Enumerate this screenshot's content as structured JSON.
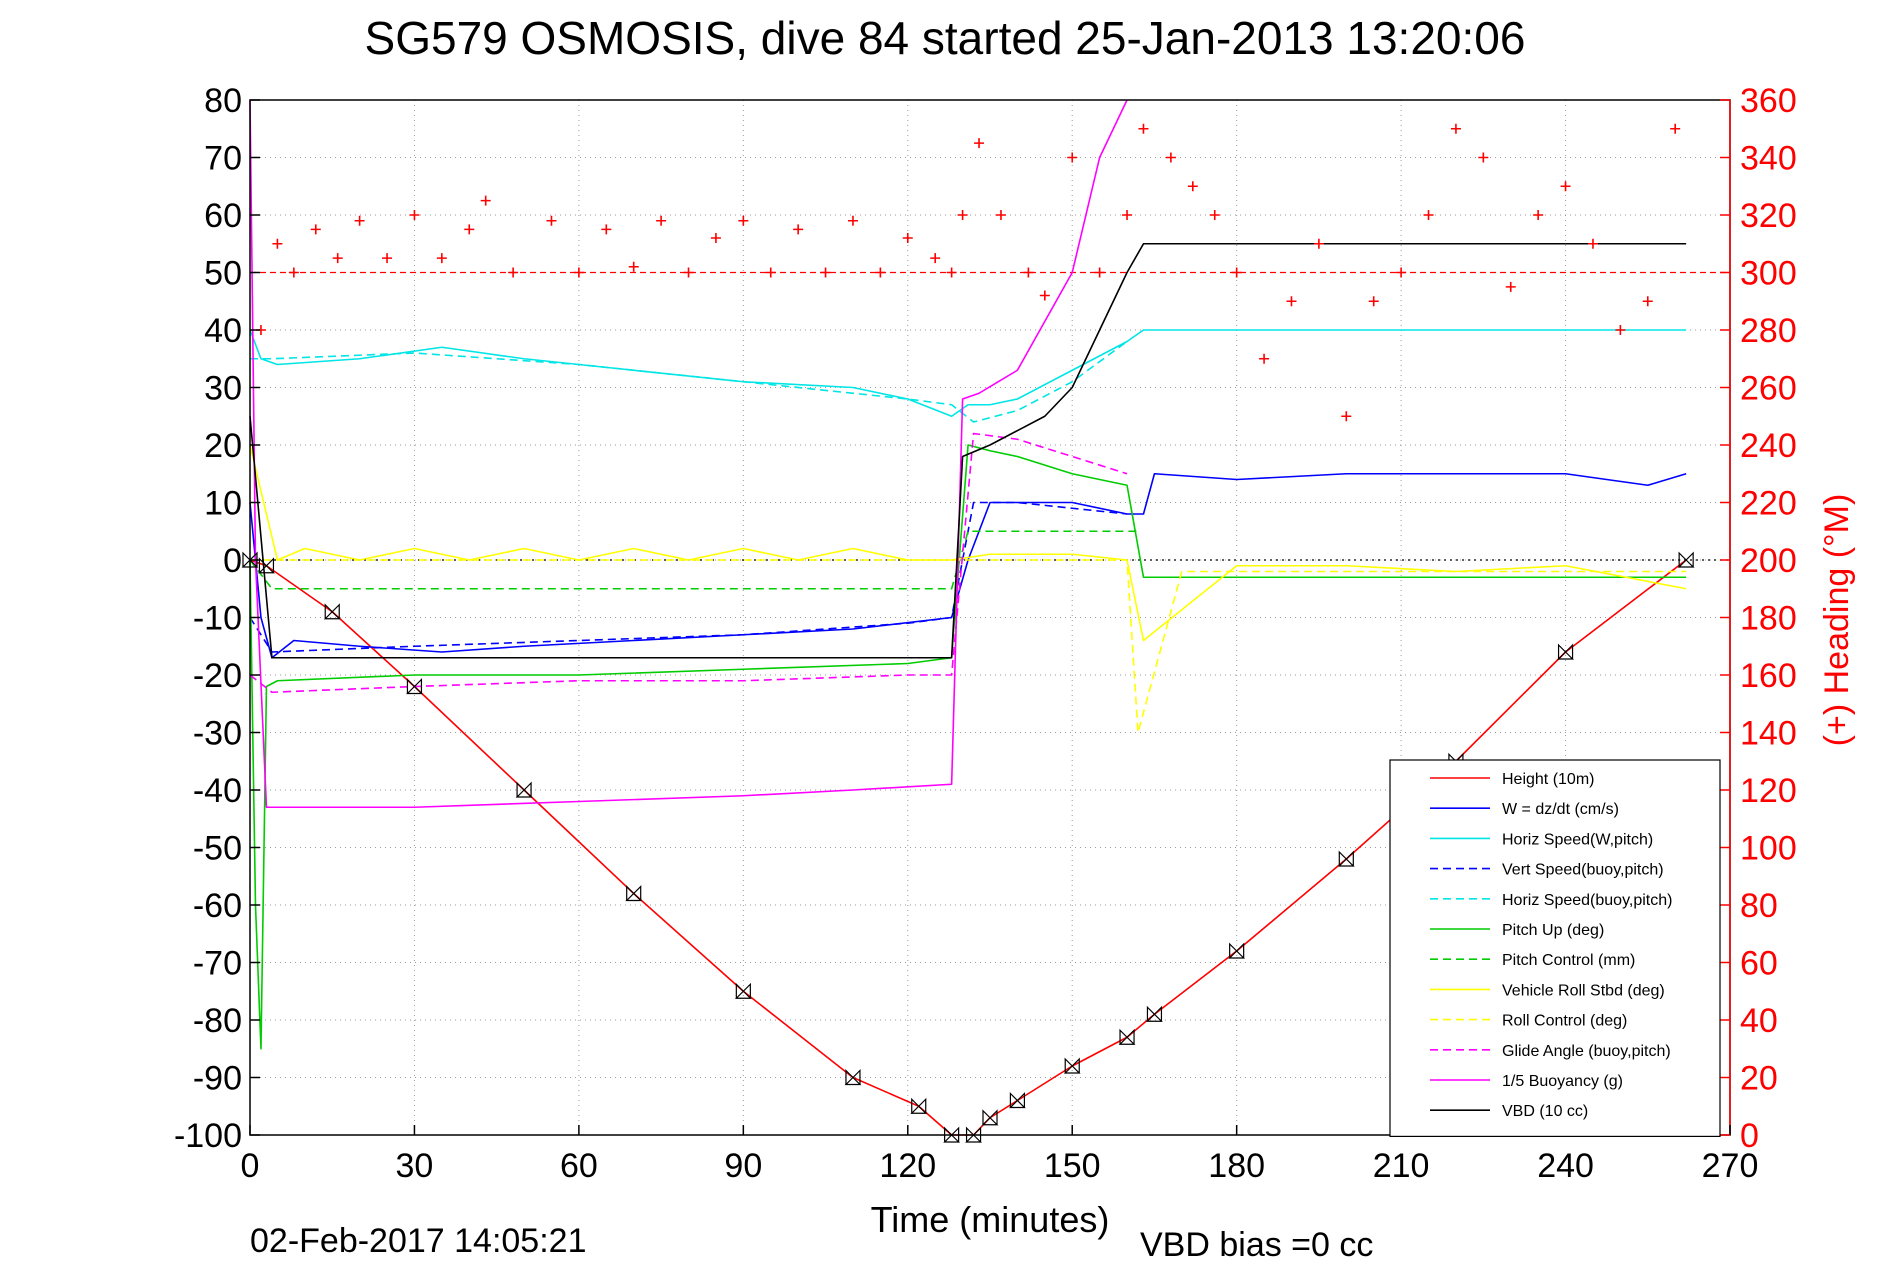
{
  "chart_data": {
    "type": "line",
    "title": "SG579 OSMOSIS, dive 84 started 25-Jan-2013 13:20:06",
    "xlabel": "Time (minutes)",
    "ylabel_right": "(+) Heading (°M)",
    "footer_left": "02-Feb-2017 14:05:21",
    "footer_right": "VBD bias =0 cc",
    "xlim": [
      0,
      270
    ],
    "ylim": [
      -100,
      80
    ],
    "ylim_right": [
      0,
      360
    ],
    "x_ticks": [
      "0",
      "30",
      "60",
      "90",
      "120",
      "150",
      "180",
      "210",
      "240",
      "270"
    ],
    "y_ticks": [
      "80",
      "70",
      "60",
      "50",
      "40",
      "30",
      "20",
      "10",
      "0",
      "-10",
      "-20",
      "-30",
      "-40",
      "-50",
      "-60",
      "-70",
      "-80",
      "-90",
      "-100"
    ],
    "y_right_ticks": [
      "360",
      "340",
      "320",
      "300",
      "280",
      "260",
      "240",
      "220",
      "200",
      "180",
      "160",
      "140",
      "120",
      "100",
      "80",
      "60",
      "40",
      "20",
      "0"
    ],
    "grid": true,
    "legend_position": "bottom-right",
    "reference_lines": [
      {
        "axis": "right",
        "value": 300,
        "color": "#ff0000",
        "style": "dashed"
      },
      {
        "axis": "left",
        "value": 0,
        "color": "#000000",
        "style": "dotted"
      }
    ],
    "series": [
      {
        "name": "Height (10m)",
        "color": "#ff0000",
        "style": "solid",
        "marker": "triangles",
        "x": [
          0,
          3,
          15,
          30,
          50,
          70,
          90,
          110,
          122,
          128,
          132,
          135,
          140,
          150,
          160,
          165,
          180,
          200,
          220,
          240,
          262
        ],
        "y": [
          0,
          -1,
          -9,
          -22,
          -40,
          -58,
          -75,
          -90,
          -95,
          -100,
          -100,
          -97,
          -94,
          -88,
          -83,
          -79,
          -68,
          -52,
          -35,
          -16,
          0
        ]
      },
      {
        "name": "W = dz/dt (cm/s)",
        "color": "#0000ff",
        "style": "solid",
        "x": [
          0,
          2,
          4,
          8,
          20,
          35,
          50,
          70,
          90,
          110,
          128,
          131,
          135,
          150,
          160,
          163,
          165,
          180,
          200,
          220,
          240,
          255,
          262
        ],
        "y": [
          10,
          -10,
          -17,
          -14,
          -15,
          -16,
          -15,
          -14,
          -13,
          -12,
          -10,
          0,
          10,
          10,
          8,
          8,
          15,
          14,
          15,
          15,
          15,
          13,
          15
        ]
      },
      {
        "name": "Horiz Speed(W,pitch)",
        "color": "#00e5e5",
        "style": "solid",
        "x": [
          0,
          2,
          5,
          20,
          35,
          50,
          70,
          90,
          110,
          120,
          128,
          131,
          135,
          140,
          150,
          160,
          163,
          180,
          200,
          220,
          240,
          262
        ],
        "y": [
          40,
          35,
          34,
          35,
          37,
          35,
          33,
          31,
          30,
          28,
          25,
          27,
          27,
          28,
          33,
          38,
          40,
          40,
          40,
          40,
          40,
          40
        ]
      },
      {
        "name": "Vert Speed(buoy,pitch)",
        "color": "#0000ff",
        "style": "dashed",
        "x": [
          0,
          4,
          30,
          60,
          90,
          120,
          128,
          132,
          140,
          150,
          160
        ],
        "y": [
          -10,
          -16,
          -15,
          -14,
          -13,
          -11,
          -10,
          10,
          10,
          9,
          8
        ]
      },
      {
        "name": "Horiz Speed(buoy,pitch)",
        "color": "#00e5e5",
        "style": "dashed",
        "x": [
          0,
          4,
          30,
          60,
          90,
          120,
          128,
          132,
          140,
          150,
          160
        ],
        "y": [
          35,
          35,
          36,
          34,
          31,
          28,
          27,
          24,
          26,
          31,
          38
        ]
      },
      {
        "name": "Pitch Up (deg)",
        "color": "#00cc00",
        "style": "solid",
        "x": [
          0,
          1,
          2,
          3,
          5,
          30,
          60,
          90,
          120,
          128,
          131,
          135,
          140,
          150,
          160,
          163,
          180,
          200,
          220,
          240,
          262
        ],
        "y": [
          0,
          -60,
          -85,
          -22,
          -21,
          -20,
          -20,
          -19,
          -18,
          -17,
          20,
          19,
          18,
          15,
          13,
          -3,
          -3,
          -3,
          -3,
          -3,
          -3
        ]
      },
      {
        "name": "Pitch Control (mm)",
        "color": "#00cc00",
        "style": "dashed",
        "x": [
          0,
          4,
          30,
          60,
          90,
          128,
          131,
          160,
          162
        ],
        "y": [
          0,
          -5,
          -5,
          -5,
          -5,
          -5,
          5,
          5,
          5
        ]
      },
      {
        "name": "Vehicle Roll Stbd (deg)",
        "color": "#ffff00",
        "style": "solid",
        "x": [
          0,
          5,
          10,
          20,
          30,
          40,
          50,
          60,
          70,
          80,
          90,
          100,
          110,
          120,
          128,
          135,
          150,
          160,
          163,
          180,
          200,
          220,
          240,
          262
        ],
        "y": [
          20,
          0,
          2,
          0,
          2,
          0,
          2,
          0,
          2,
          0,
          2,
          0,
          2,
          0,
          0,
          1,
          1,
          0,
          -14,
          -1,
          -1,
          -2,
          -1,
          -5
        ]
      },
      {
        "name": "Roll Control (deg)",
        "color": "#ffff00",
        "style": "dashed",
        "x": [
          0,
          30,
          60,
          90,
          120,
          128,
          160,
          162,
          170,
          200,
          240,
          262
        ],
        "y": [
          0,
          0,
          0,
          0,
          0,
          0,
          0,
          -30,
          -2,
          -2,
          -2,
          -2
        ]
      },
      {
        "name": "Glide Angle (buoy,pitch)",
        "color": "#ff00ff",
        "style": "dashed",
        "x": [
          0,
          4,
          30,
          60,
          90,
          120,
          128,
          132,
          140,
          150,
          160
        ],
        "y": [
          -20,
          -23,
          -22,
          -21,
          -21,
          -20,
          -20,
          22,
          21,
          18,
          15
        ]
      },
      {
        "name": "1/5 Buoyancy (g)",
        "color": "#ff00ff",
        "style": "solid",
        "x": [
          0,
          1,
          3,
          30,
          60,
          90,
          110,
          128,
          130,
          133,
          140,
          150,
          155,
          160
        ],
        "y": [
          80,
          0,
          -43,
          -43,
          -42,
          -41,
          -40,
          -39,
          28,
          29,
          33,
          50,
          70,
          80
        ]
      },
      {
        "name": "VBD (10 cc)",
        "color": "#000000",
        "style": "solid",
        "x": [
          0,
          4,
          30,
          60,
          90,
          128,
          130,
          135,
          145,
          150,
          155,
          160,
          163,
          200,
          262
        ],
        "y": [
          25,
          -17,
          -17,
          -17,
          -17,
          -17,
          18,
          20,
          25,
          30,
          40,
          50,
          55,
          55,
          55
        ]
      },
      {
        "name": "Heading (°M)",
        "axis": "right",
        "color": "#ff0000",
        "style": "markers",
        "marker": "plus",
        "x": [
          2,
          5,
          8,
          12,
          16,
          20,
          25,
          30,
          35,
          40,
          43,
          48,
          55,
          60,
          65,
          70,
          75,
          80,
          85,
          90,
          95,
          100,
          105,
          110,
          115,
          120,
          125,
          128,
          130,
          133,
          137,
          142,
          145,
          150,
          155,
          160,
          163,
          168,
          172,
          176,
          180,
          185,
          190,
          195,
          200,
          205,
          210,
          215,
          220,
          225,
          230,
          235,
          240,
          245,
          250,
          255,
          260
        ],
        "y": [
          280,
          310,
          300,
          315,
          305,
          318,
          305,
          320,
          305,
          315,
          325,
          300,
          318,
          300,
          315,
          302,
          318,
          300,
          312,
          318,
          300,
          315,
          300,
          318,
          300,
          312,
          305,
          300,
          320,
          345,
          320,
          300,
          292,
          340,
          300,
          320,
          350,
          340,
          330,
          320,
          300,
          270,
          290,
          310,
          250,
          290,
          300,
          320,
          350,
          340,
          295,
          320,
          330,
          310,
          280,
          290,
          350
        ]
      }
    ]
  }
}
